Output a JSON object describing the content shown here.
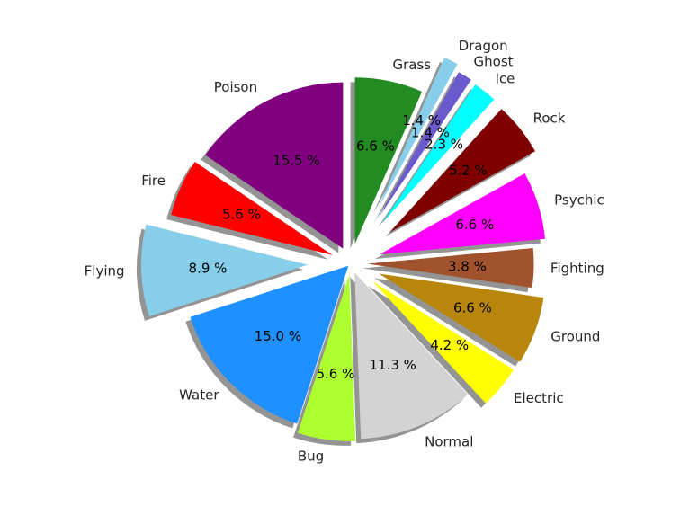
{
  "chart_data": {
    "type": "pie",
    "start_angle_deg": 90,
    "direction": "counterclockwise",
    "shadow": true,
    "exploded": true,
    "slices": [
      {
        "label": "Poison",
        "value": 15.5,
        "pct_label": "15.5 %",
        "color": "#800080",
        "explode": 0.1
      },
      {
        "label": "Fire",
        "value": 5.6,
        "pct_label": "5.6 %",
        "color": "#ff0000",
        "explode": 0.12
      },
      {
        "label": "Flying",
        "value": 8.9,
        "pct_label": "8.9 %",
        "color": "#87ceeb",
        "explode": 0.26
      },
      {
        "label": "Water",
        "value": 15.0,
        "pct_label": "15.0 %",
        "color": "#1e90ff",
        "explode": 0.02
      },
      {
        "label": "Bug",
        "value": 5.6,
        "pct_label": "5.6 %",
        "color": "#adff2f",
        "explode": 0.07
      },
      {
        "label": "Normal",
        "value": 11.3,
        "pct_label": "11.3 %",
        "color": "#d3d3d3",
        "explode": 0.06
      },
      {
        "label": "Electric",
        "value": 4.2,
        "pct_label": "4.2 %",
        "color": "#ffff00",
        "explode": 0.17
      },
      {
        "label": "Ground",
        "value": 6.6,
        "pct_label": "6.6 %",
        "color": "#b8860b",
        "explode": 0.18
      },
      {
        "label": "Fighting",
        "value": 3.8,
        "pct_label": "3.8 %",
        "color": "#a0522d",
        "explode": 0.1
      },
      {
        "label": "Psychic",
        "value": 6.6,
        "pct_label": "6.6 %",
        "color": "#ff00ff",
        "explode": 0.18
      },
      {
        "label": "Rock",
        "value": 5.2,
        "pct_label": "5.2 %",
        "color": "#800000",
        "explode": 0.3
      },
      {
        "label": "Ice",
        "value": 2.3,
        "pct_label": "2.3 %",
        "color": "#00ffff",
        "explode": 0.31
      },
      {
        "label": "Ghost",
        "value": 1.4,
        "pct_label": "1.4 %",
        "color": "#6a5acd",
        "explode": 0.32
      },
      {
        "label": "Dragon",
        "value": 1.4,
        "pct_label": "1.4 %",
        "color": "#87ceeb",
        "explode": 0.36
      },
      {
        "label": "Grass",
        "value": 6.6,
        "pct_label": "6.6 %",
        "color": "#228b22",
        "explode": 0.12
      }
    ]
  }
}
